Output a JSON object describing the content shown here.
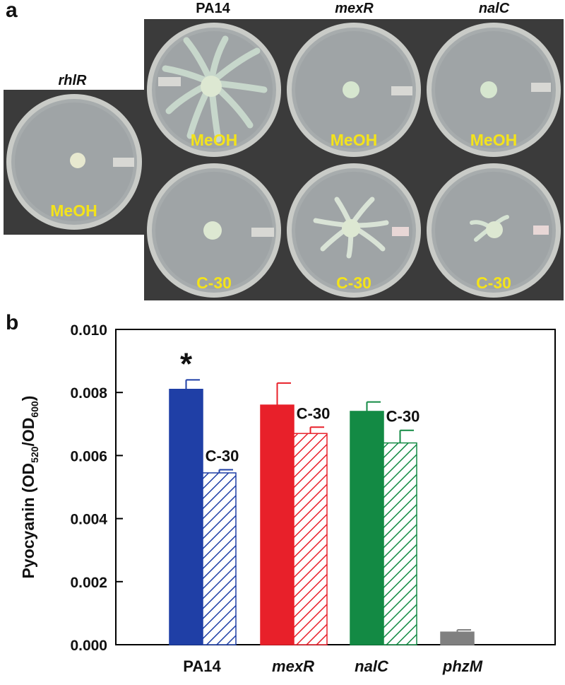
{
  "figure": {
    "panel_a": {
      "letter": "a",
      "strains": [
        {
          "name": "rhlR",
          "italic": true
        },
        {
          "name": "PA14",
          "italic": false
        },
        {
          "name": "mexR",
          "italic": true
        },
        {
          "name": "nalC",
          "italic": true
        }
      ],
      "plates": [
        {
          "strain": "rhlR",
          "treatment": "MeOH",
          "swarm": "none"
        },
        {
          "strain": "PA14",
          "treatment": "MeOH",
          "swarm": "extensive"
        },
        {
          "strain": "mexR",
          "treatment": "MeOH",
          "swarm": "none"
        },
        {
          "strain": "nalC",
          "treatment": "MeOH",
          "swarm": "none"
        },
        {
          "strain": "PA14",
          "treatment": "C-30",
          "swarm": "none"
        },
        {
          "strain": "mexR",
          "treatment": "C-30",
          "swarm": "moderate"
        },
        {
          "strain": "nalC",
          "treatment": "C-30",
          "swarm": "minimal"
        }
      ]
    },
    "panel_b": {
      "letter": "b"
    }
  },
  "chart_data": {
    "type": "bar",
    "ylabel": "Pyocyanin (OD520/OD600)",
    "ylabel_parts": {
      "prefix": "Pyocyanin (OD",
      "sub1": "520",
      "mid": "/OD",
      "sub2": "600",
      "suffix": ")"
    },
    "ylim": [
      0,
      0.01
    ],
    "yticks": [
      "0.000",
      "0.002",
      "0.004",
      "0.006",
      "0.008",
      "0.010"
    ],
    "categories": [
      "PA14",
      "mexR",
      "nalC",
      "phzM"
    ],
    "category_italic": [
      false,
      true,
      true,
      true
    ],
    "series": [
      {
        "treatment": "MeOH",
        "fill": "solid",
        "values": [
          0.0081,
          0.0076,
          0.0074,
          0.0004
        ],
        "errors": [
          0.0003,
          0.0007,
          0.0003,
          7e-05
        ]
      },
      {
        "treatment": "C-30",
        "fill": "hatched",
        "values": [
          0.00545,
          0.0067,
          0.0064,
          null
        ],
        "errors": [
          0.0001,
          0.0002,
          0.0004,
          null
        ]
      }
    ],
    "colors": [
      "#1f3fa6",
      "#e8202a",
      "#138a44",
      "#808080"
    ],
    "annotations": {
      "bar_label": "C-30",
      "significance": "*"
    },
    "grid": false
  }
}
